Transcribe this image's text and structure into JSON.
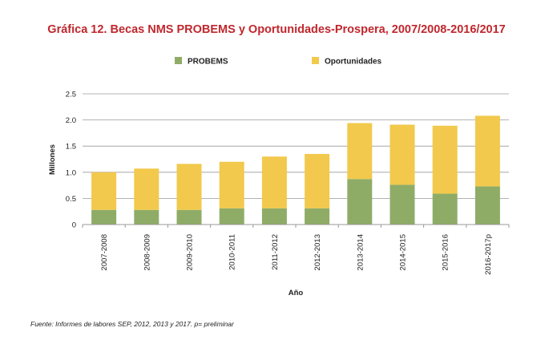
{
  "chart_data": {
    "type": "bar",
    "stacked": true,
    "title": "Gráfica 12. Becas NMS PROBEMS y Oportunidades-Prospera, 2007/2008-2016/2017",
    "xlabel": "Año",
    "ylabel": "Millones",
    "ylim": [
      0,
      2.5
    ],
    "yticks": [
      "0",
      "0.5",
      "1.0",
      "1.5",
      "2.0",
      "2.5"
    ],
    "grid": true,
    "legend_position": "top",
    "categories": [
      "2007-2008",
      "2008-2009",
      "2009-2010",
      "2010-2011",
      "2011-2012",
      "2012-2013",
      "2013-2014",
      "2014-2015",
      "2015-2016",
      "2016-2017p"
    ],
    "series": [
      {
        "name": "PROBEMS",
        "color": "#8fac67",
        "values": [
          0.28,
          0.28,
          0.28,
          0.31,
          0.31,
          0.31,
          0.87,
          0.76,
          0.59,
          0.73
        ]
      },
      {
        "name": "Oportunidades",
        "color": "#f2c94c",
        "values": [
          0.72,
          0.79,
          0.88,
          0.89,
          0.99,
          1.04,
          1.07,
          1.15,
          1.3,
          1.35
        ]
      }
    ]
  },
  "source_note": "Fuente: Informes de labores SEP, 2012, 2013 y 2017. p= preliminar"
}
